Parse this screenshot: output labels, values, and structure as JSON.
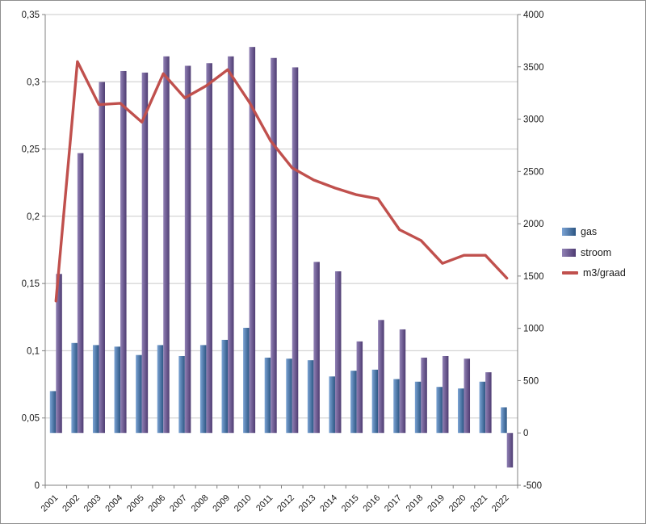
{
  "chart_data": {
    "type": "bar",
    "subtype": "combo-grouped-bars-with-line-dual-axis",
    "title": "",
    "categories": [
      "2001",
      "2002",
      "2003",
      "2004",
      "2005",
      "2006",
      "2007",
      "2008",
      "2009",
      "2010",
      "2011",
      "2012",
      "2013",
      "2014",
      "2015",
      "2016",
      "2017",
      "2018",
      "2019",
      "2020",
      "2021",
      "2022"
    ],
    "series": [
      {
        "name": "gas",
        "type": "bar",
        "axis": "right",
        "color": "#4f81bd",
        "color_light": "#7ba3d4",
        "color_dark": "#2d5683",
        "values": [
          400,
          860,
          840,
          825,
          745,
          840,
          735,
          840,
          890,
          1005,
          720,
          710,
          695,
          540,
          595,
          605,
          515,
          490,
          440,
          425,
          490,
          245
        ]
      },
      {
        "name": "stroom",
        "type": "bar",
        "axis": "right",
        "color": "#8064a2",
        "color_light": "#9181b5",
        "color_dark": "#4e3c72",
        "values": [
          1520,
          2675,
          3355,
          3460,
          3445,
          3600,
          3510,
          3535,
          3600,
          3690,
          3585,
          3495,
          1635,
          1545,
          875,
          1080,
          990,
          720,
          735,
          710,
          580,
          -330
        ]
      },
      {
        "name": "m3/graad",
        "type": "line",
        "axis": "left",
        "color": "#c0504d",
        "values": [
          0.137,
          0.315,
          0.283,
          0.284,
          0.27,
          0.306,
          0.288,
          0.297,
          0.309,
          0.285,
          0.256,
          0.236,
          0.227,
          0.221,
          0.216,
          0.213,
          0.19,
          0.182,
          0.165,
          0.171,
          0.171,
          0.154
        ]
      }
    ],
    "left_axis": {
      "min": 0,
      "max": 0.35,
      "step": 0.05,
      "tick_labels": [
        "0,35",
        "0,3",
        "0,25",
        "0,2",
        "0,15",
        "0,1",
        "0,05",
        "0"
      ]
    },
    "right_axis": {
      "min": -500,
      "max": 4000,
      "step": 500,
      "tick_labels": [
        "4000",
        "3500",
        "3000",
        "2500",
        "2000",
        "1500",
        "1000",
        "500",
        "0",
        "-500"
      ]
    },
    "legend": {
      "position": "right",
      "entries": [
        "gas",
        "stroom",
        "m3/graad"
      ]
    },
    "grid": true,
    "grid_color": "#c9c9c9",
    "axis_color": "#808080"
  }
}
